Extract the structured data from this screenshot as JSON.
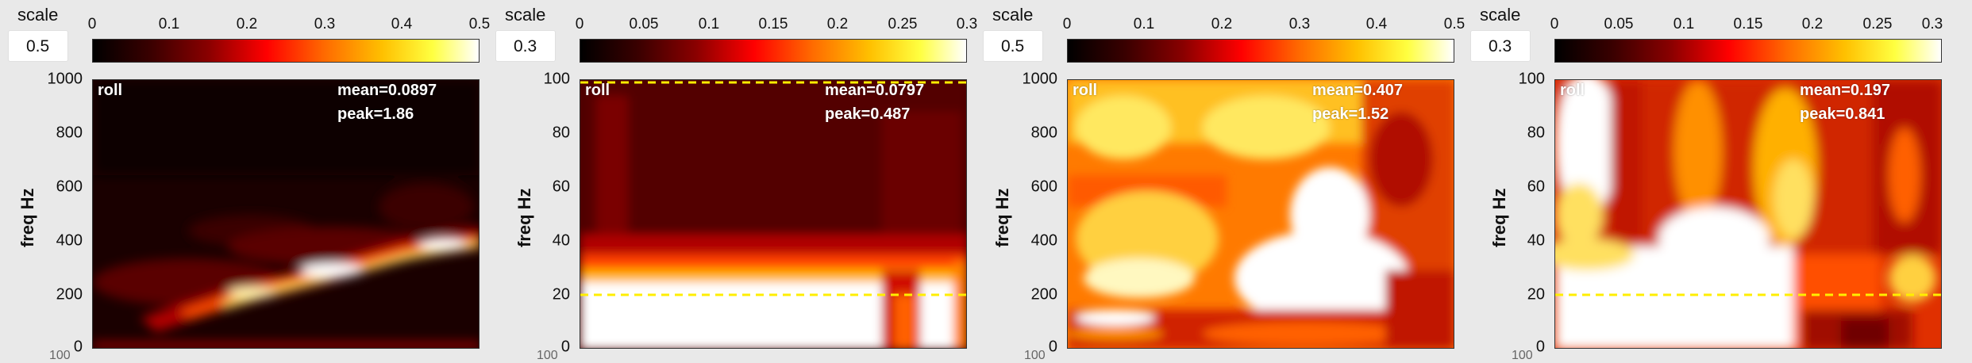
{
  "panels": [
    {
      "scale_label": "scale",
      "scale_value": "0.5",
      "colorbar_ticks": [
        "0",
        "0.1",
        "0.2",
        "0.3",
        "0.4",
        "0.5"
      ],
      "y_ticks": [
        "1000",
        "800",
        "600",
        "400",
        "200",
        "0"
      ],
      "y_label": "freq Hz",
      "overlay": "roll",
      "mean": "mean=0.0897",
      "peak": "peak=1.86",
      "bottom_cut": "100"
    },
    {
      "scale_label": "scale",
      "scale_value": "0.3",
      "colorbar_ticks": [
        "0",
        "0.05",
        "0.1",
        "0.15",
        "0.2",
        "0.25",
        "0.3"
      ],
      "y_ticks": [
        "100",
        "80",
        "60",
        "40",
        "20",
        "0"
      ],
      "y_label": "freq Hz",
      "overlay": "roll",
      "mean": "mean=0.0797",
      "peak": "peak=0.487",
      "bottom_cut": "100"
    },
    {
      "scale_label": "scale",
      "scale_value": "0.5",
      "colorbar_ticks": [
        "0",
        "0.1",
        "0.2",
        "0.3",
        "0.4",
        "0.5"
      ],
      "y_ticks": [
        "1000",
        "800",
        "600",
        "400",
        "200",
        "0"
      ],
      "y_label": "freq Hz",
      "overlay": "roll",
      "mean": "mean=0.407",
      "peak": "peak=1.52",
      "bottom_cut": "100"
    },
    {
      "scale_label": "scale",
      "scale_value": "0.3",
      "colorbar_ticks": [
        "0",
        "0.05",
        "0.1",
        "0.15",
        "0.2",
        "0.25",
        "0.3"
      ],
      "y_ticks": [
        "100",
        "80",
        "60",
        "40",
        "20",
        "0"
      ],
      "y_label": "freq Hz",
      "overlay": "roll",
      "mean": "mean=0.197",
      "peak": "peak=0.841",
      "bottom_cut": "100"
    }
  ],
  "colors": {
    "threshold_line": "#ffee00",
    "background": "#e9e9e9"
  }
}
